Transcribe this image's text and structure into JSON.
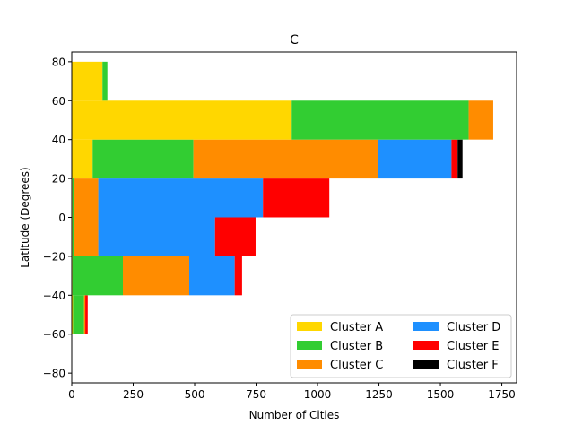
{
  "chart_data": {
    "type": "bar",
    "orientation": "horizontal",
    "stacked": true,
    "title": "C",
    "xlabel": "Number of Cities",
    "ylabel": "Latitude (Degrees)",
    "xlim": [
      0,
      1810
    ],
    "ylim": [
      -85,
      85
    ],
    "xticks": [
      0,
      250,
      500,
      750,
      1000,
      1250,
      1500,
      1750
    ],
    "yticks": [
      -80,
      -60,
      -40,
      -20,
      0,
      20,
      40,
      60,
      80
    ],
    "grid": false,
    "legend": {
      "position": "lower-right",
      "columns": 2
    },
    "bins": [
      {
        "from": -60,
        "to": -40
      },
      {
        "from": -40,
        "to": -20
      },
      {
        "from": -20,
        "to": 0
      },
      {
        "from": 0,
        "to": 20
      },
      {
        "from": 20,
        "to": 40
      },
      {
        "from": 40,
        "to": 60
      },
      {
        "from": 60,
        "to": 80
      }
    ],
    "series": [
      {
        "name": "Cluster A",
        "color": "#ffd700",
        "values": [
          5,
          3,
          3,
          3,
          85,
          895,
          125
        ]
      },
      {
        "name": "Cluster B",
        "color": "#32cd32",
        "values": [
          45,
          205,
          5,
          5,
          410,
          720,
          20
        ]
      },
      {
        "name": "Cluster C",
        "color": "#ff8c00",
        "values": [
          5,
          270,
          100,
          100,
          750,
          100,
          0
        ]
      },
      {
        "name": "Cluster D",
        "color": "#1e90ff",
        "values": [
          0,
          185,
          475,
          670,
          300,
          0,
          0
        ]
      },
      {
        "name": "Cluster E",
        "color": "#ff0000",
        "values": [
          10,
          30,
          165,
          270,
          25,
          0,
          0
        ]
      },
      {
        "name": "Cluster F",
        "color": "#000000",
        "values": [
          0,
          0,
          0,
          0,
          20,
          0,
          0
        ]
      }
    ]
  }
}
